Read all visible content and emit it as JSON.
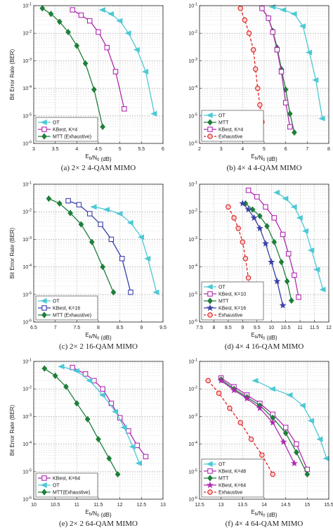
{
  "figure": {
    "colors": {
      "OT": "#4cc9d4",
      "KBest": "#b02ab0",
      "MTT": "#1f7f3a",
      "MTT (Exhaustive)": "#1f7f3a",
      "MTT(Exhaustive)": "#1f7f3a",
      "KBest, K=16": "#3a3fa8",
      "Exhaustive": "#e02020"
    }
  },
  "chart_data": [
    {
      "type": "line",
      "caption": "(a) 2× 2 4-QAM MIMO",
      "xlabel": "E_b/N_0 (dB)",
      "ylabel": "Bit Error Rate (BER)",
      "xlim": [
        3,
        6
      ],
      "ylim_exp": [
        -6,
        -1
      ],
      "log_y": true,
      "grid": true,
      "xticks": [
        3,
        3.5,
        4,
        4.5,
        5,
        5.5,
        6
      ],
      "xtick_labels": [
        "3",
        "3.5",
        "4",
        "4.5",
        "5",
        "5.5",
        "6"
      ],
      "ytick_labels": [
        "10^{-6}",
        "10^{-5}",
        "10^{-4}",
        "10^{-3}",
        "10^{-2}",
        "10^{-1}"
      ],
      "legend_position": "bottom-left",
      "series": [
        {
          "name": "OT",
          "marker": "left-triangle",
          "dashed": false,
          "x": [
            4.6,
            4.8,
            5.0,
            5.2,
            5.4,
            5.6,
            5.8
          ],
          "y": [
            0.07,
            0.05,
            0.028,
            0.01,
            0.0025,
            0.0004,
            1.2e-05
          ]
        },
        {
          "name": "KBest, K=4",
          "marker": "square",
          "dashed": false,
          "x": [
            3.9,
            4.1,
            4.3,
            4.5,
            4.7,
            4.9,
            5.1
          ],
          "y": [
            0.07,
            0.045,
            0.028,
            0.011,
            0.003,
            0.0004,
            1.8e-05
          ]
        },
        {
          "name": "MTT (Exhaustive)",
          "marker": "diamond",
          "dashed": false,
          "x": [
            3.2,
            3.4,
            3.6,
            3.8,
            4.0,
            4.2,
            4.4,
            4.6
          ],
          "y": [
            0.08,
            0.05,
            0.026,
            0.011,
            0.0035,
            0.0008,
            9e-05,
            4e-06
          ]
        }
      ]
    },
    {
      "type": "line",
      "caption": "(b) 4× 4 4-QAM MIMO",
      "xlabel": "E_b/N_0 (dB)",
      "ylabel": "",
      "xlim": [
        2,
        8
      ],
      "ylim_exp": [
        -6,
        -1
      ],
      "log_y": true,
      "grid": true,
      "xticks": [
        2,
        3,
        4,
        5,
        6,
        7,
        8
      ],
      "xtick_labels": [
        "2",
        "3",
        "4",
        "5",
        "6",
        "7",
        "8"
      ],
      "ytick_labels": [
        "10^{-6}",
        "10^{-5}",
        "10^{-4}",
        "10^{-3}",
        "10^{-2}",
        "10^{-1}"
      ],
      "legend_position": "bottom-left",
      "series": [
        {
          "name": "OT",
          "marker": "left-triangle",
          "dashed": false,
          "x": [
            5.4,
            5.9,
            6.4,
            6.8,
            7.1,
            7.4,
            7.7
          ],
          "y": [
            0.09,
            0.07,
            0.05,
            0.018,
            0.002,
            0.0002,
            8e-06
          ]
        },
        {
          "name": "MTT",
          "marker": "diamond",
          "dashed": false,
          "x": [
            4.9,
            5.2,
            5.4,
            5.6,
            5.8,
            6.0,
            6.2,
            6.4
          ],
          "y": [
            0.08,
            0.035,
            0.012,
            0.003,
            0.0005,
            9e-05,
            1.2e-05,
            2.5e-06
          ]
        },
        {
          "name": "KBest, K=4",
          "marker": "square",
          "dashed": false,
          "x": [
            4.9,
            5.2,
            5.4,
            5.6,
            5.8,
            6.0,
            6.2
          ],
          "y": [
            0.08,
            0.035,
            0.011,
            0.0025,
            0.0004,
            3e-05,
            4e-06
          ]
        },
        {
          "name": "Exhaustive",
          "marker": "circle",
          "dashed": true,
          "x": [
            3.9,
            4.1,
            4.3,
            4.5,
            4.6,
            4.7,
            4.8,
            4.9
          ],
          "y": [
            0.08,
            0.03,
            0.01,
            0.0025,
            0.0005,
            0.0001,
            2.5e-05,
            6e-06
          ]
        }
      ]
    },
    {
      "type": "line",
      "caption": "(c) 2× 2 16-QAM MIMO",
      "xlabel": "E_b/N_0 (dB)",
      "ylabel": "Bit Error Rate (BER)",
      "xlim": [
        6.5,
        9.5
      ],
      "ylim_exp": [
        -6,
        -1
      ],
      "log_y": true,
      "grid": true,
      "xticks": [
        6.5,
        7,
        7.5,
        8,
        8.5,
        9,
        9.5
      ],
      "xtick_labels": [
        "6.5",
        "7",
        "7.5",
        "8",
        "8.5",
        "9",
        "9.5"
      ],
      "ytick_labels": [
        "10^{-6}",
        "10^{-5}",
        "10^{-4}",
        "10^{-3}",
        "10^{-2}",
        "10^{-1}"
      ],
      "legend_position": "bottom-left",
      "series": [
        {
          "name": "OT",
          "marker": "left-triangle",
          "dashed": false,
          "x": [
            7.9,
            8.2,
            8.5,
            8.75,
            9.0,
            9.15,
            9.35
          ],
          "y": [
            0.015,
            0.012,
            0.0085,
            0.004,
            0.0012,
            0.0002,
            1.2e-05
          ]
        },
        {
          "name": "KBest, K=16",
          "marker": "square",
          "dashed": false,
          "x": [
            7.3,
            7.55,
            7.8,
            8.05,
            8.3,
            8.55,
            8.75
          ],
          "y": [
            0.025,
            0.018,
            0.0085,
            0.0035,
            0.001,
            0.0002,
            1.2e-05
          ]
        },
        {
          "name": "MTT (Exhaustive)",
          "marker": "diamond",
          "dashed": false,
          "x": [
            6.85,
            7.1,
            7.35,
            7.6,
            7.85,
            8.1,
            8.35
          ],
          "y": [
            0.03,
            0.02,
            0.009,
            0.0035,
            0.0008,
            0.0001,
            1.2e-05
          ]
        }
      ]
    },
    {
      "type": "line",
      "caption": "(d) 4× 4 16-QAM MIMO",
      "xlabel": "E_b/N_0 (dB)",
      "ylabel": "",
      "xlim": [
        7.5,
        12
      ],
      "ylim_exp": [
        -6,
        -1
      ],
      "log_y": true,
      "grid": true,
      "xticks": [
        7.5,
        8,
        8.5,
        9,
        9.5,
        10,
        10.5,
        11,
        11.5,
        12
      ],
      "xtick_labels": [
        "7.5",
        "8",
        "8.5",
        "9",
        "9.5",
        "10",
        "10.5",
        "11",
        "11.5",
        "12"
      ],
      "ytick_labels": [
        "10^{-6}",
        "10^{-5}",
        "10^{-4}",
        "10^{-3}",
        "10^{-2}",
        "10^{-1}"
      ],
      "legend_position": "bottom-left",
      "series": [
        {
          "name": "OT",
          "marker": "left-triangle",
          "dashed": false,
          "x": [
            10.2,
            10.5,
            10.8,
            11.0,
            11.2,
            11.4,
            11.6,
            11.8
          ],
          "y": [
            0.05,
            0.03,
            0.015,
            0.006,
            0.002,
            0.0004,
            8e-05,
            1.5e-05
          ]
        },
        {
          "name": "KBest, K=10",
          "marker": "square",
          "dashed": false,
          "x": [
            9.2,
            9.5,
            9.8,
            10.1,
            10.4,
            10.6,
            10.8,
            10.95
          ],
          "y": [
            0.06,
            0.035,
            0.015,
            0.006,
            0.0015,
            0.0003,
            5e-05,
            8e-06
          ]
        },
        {
          "name": "MTT",
          "marker": "diamond",
          "dashed": false,
          "x": [
            9.1,
            9.35,
            9.6,
            9.85,
            10.1,
            10.35,
            10.55,
            10.7
          ],
          "y": [
            0.02,
            0.012,
            0.007,
            0.003,
            0.0008,
            0.00015,
            3e-05,
            6e-06
          ]
        },
        {
          "name": "KBest, K=16",
          "marker": "star",
          "dashed": false,
          "x": [
            9.0,
            9.2,
            9.4,
            9.6,
            9.8,
            10.0,
            10.2,
            10.4
          ],
          "y": [
            0.02,
            0.012,
            0.006,
            0.0025,
            0.0007,
            0.00015,
            3e-05,
            4e-06
          ]
        },
        {
          "name": "Exhaustive",
          "marker": "circle",
          "dashed": true,
          "x": [
            8.5,
            8.7,
            8.85,
            9.0,
            9.1,
            9.2,
            9.3
          ],
          "y": [
            0.015,
            0.006,
            0.0025,
            0.0008,
            0.0002,
            4e-05,
            8e-06
          ]
        }
      ]
    },
    {
      "type": "line",
      "caption": "(e) 2× 2 64-QAM MIMO",
      "xlabel": "E_b/N_0 (dB)",
      "ylabel": "Bit Error Rate (BER)",
      "xlim": [
        10,
        13
      ],
      "ylim_exp": [
        -6,
        -1
      ],
      "log_y": true,
      "grid": true,
      "xticks": [
        10,
        10.5,
        11,
        11.5,
        12,
        12.5,
        13
      ],
      "xtick_labels": [
        "10",
        "10.5",
        "11",
        "11.5",
        "12",
        "12.5",
        "13"
      ],
      "ytick_labels": [
        "10^{-6}",
        "10^{-5}",
        "10^{-4}",
        "10^{-3}",
        "10^{-2}",
        "10^{-1}"
      ],
      "legend_position": "bottom-left",
      "series": [
        {
          "name": "KBest, K=64",
          "marker": "square",
          "dashed": false,
          "x": [
            10.9,
            11.2,
            11.4,
            11.6,
            11.8,
            12.0,
            12.2,
            12.4,
            12.6
          ],
          "y": [
            0.06,
            0.035,
            0.02,
            0.01,
            0.003,
            0.0009,
            0.0003,
            9e-05,
            3.5e-05
          ]
        },
        {
          "name": "OT",
          "marker": "left-triangle",
          "dashed": false,
          "x": [
            10.65,
            11.0,
            11.3,
            11.6,
            11.9,
            12.1,
            12.3,
            12.45
          ],
          "y": [
            0.065,
            0.045,
            0.02,
            0.006,
            0.0015,
            0.0004,
            8e-05,
            2e-05
          ]
        },
        {
          "name": "MTT(Exhaustive)",
          "marker": "diamond",
          "dashed": false,
          "x": [
            10.25,
            10.5,
            10.75,
            11.0,
            11.25,
            11.5,
            11.75,
            11.95
          ],
          "y": [
            0.055,
            0.03,
            0.012,
            0.003,
            0.0008,
            0.00015,
            3e-05,
            8e-06
          ]
        }
      ]
    },
    {
      "type": "line",
      "caption": "(f) 4× 4 64-QAM MIMO",
      "xlabel": "E_b/N_0 (dB)",
      "ylabel": "",
      "xlim": [
        12.5,
        15.5
      ],
      "ylim_exp": [
        -6,
        -1
      ],
      "log_y": true,
      "grid": true,
      "xticks": [
        12.5,
        13,
        13.5,
        14,
        14.5,
        15,
        15.5
      ],
      "xtick_labels": [
        "12.5",
        "13",
        "13.5",
        "14",
        "14.5",
        "15",
        "15.5"
      ],
      "ytick_labels": [
        "10^{-6}",
        "10^{-5}",
        "10^{-4}",
        "10^{-3}",
        "10^{-2}",
        "10^{-1}"
      ],
      "legend_position": "bottom-left",
      "series": [
        {
          "name": "OT",
          "marker": "left-triangle",
          "dashed": false,
          "x": [
            13.8,
            14.2,
            14.6,
            14.9,
            15.1,
            15.3,
            15.45
          ],
          "y": [
            0.02,
            0.01,
            0.006,
            0.0025,
            0.0007,
            0.00015,
            3e-05
          ]
        },
        {
          "name": "KBest, K=48",
          "marker": "square",
          "dashed": false,
          "x": [
            13.0,
            13.3,
            13.6,
            13.9,
            14.2,
            14.5,
            14.75,
            15.0
          ],
          "y": [
            0.025,
            0.012,
            0.006,
            0.003,
            0.0012,
            0.0004,
            0.0001,
            1.2e-05
          ]
        },
        {
          "name": "MTT",
          "marker": "diamond",
          "dashed": false,
          "x": [
            13.0,
            13.3,
            13.6,
            13.9,
            14.2,
            14.5,
            14.75,
            15.0
          ],
          "y": [
            0.022,
            0.01,
            0.005,
            0.0025,
            0.0009,
            0.00025,
            5e-05,
            8e-06
          ]
        },
        {
          "name": "KBest, K=64",
          "marker": "star",
          "dashed": false,
          "x": [
            13.0,
            13.3,
            13.6,
            13.9,
            14.2,
            14.45,
            14.7
          ],
          "y": [
            0.02,
            0.009,
            0.0045,
            0.002,
            0.0006,
            0.00012,
            2e-05
          ]
        },
        {
          "name": "Exhaustive",
          "marker": "circle",
          "dashed": true,
          "x": [
            12.7,
            12.95,
            13.2,
            13.45,
            13.7,
            13.95,
            14.2
          ],
          "y": [
            0.02,
            0.007,
            0.002,
            0.0006,
            0.00015,
            4e-05,
            8e-06
          ]
        }
      ]
    }
  ]
}
